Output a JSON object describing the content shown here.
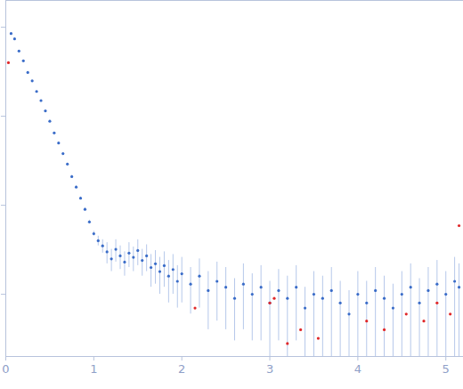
{
  "chart_data": {
    "type": "scatter",
    "log": "y",
    "grid": false,
    "tick_labels": "x",
    "xlim": [
      0,
      5.2
    ],
    "xticks": [
      0,
      1,
      2,
      3,
      4,
      5
    ],
    "ylim": [
      0.002,
      20
    ],
    "yticks": [
      0.01,
      0.1,
      1,
      10
    ],
    "series": [
      {
        "color": "#3a6cc8",
        "marker": "circle",
        "x": [
          0.06,
          0.1,
          0.15,
          0.2,
          0.25,
          0.3,
          0.35,
          0.4,
          0.45,
          0.5,
          0.55,
          0.6,
          0.65,
          0.7,
          0.75,
          0.8,
          0.85,
          0.9,
          0.95,
          1.0,
          1.05,
          1.1,
          1.15,
          1.2,
          1.25,
          1.3,
          1.35,
          1.4,
          1.45,
          1.5,
          1.55,
          1.6,
          1.65,
          1.7,
          1.75,
          1.8,
          1.85,
          1.9,
          1.95,
          2.0,
          2.1,
          2.2,
          2.3,
          2.4,
          2.5,
          2.6,
          2.7,
          2.8,
          2.9,
          3.0,
          3.1,
          3.2,
          3.3,
          3.4,
          3.5,
          3.6,
          3.7,
          3.8,
          3.9,
          4.0,
          4.1,
          4.2,
          4.3,
          4.4,
          4.5,
          4.6,
          4.7,
          4.8,
          4.9,
          5.0,
          5.1,
          5.15
        ],
        "values": [
          8.5,
          7.4,
          5.4,
          4.2,
          3.1,
          2.5,
          1.9,
          1.5,
          1.15,
          0.88,
          0.65,
          0.5,
          0.38,
          0.29,
          0.21,
          0.16,
          0.12,
          0.09,
          0.065,
          0.048,
          0.04,
          0.035,
          0.03,
          0.025,
          0.032,
          0.027,
          0.023,
          0.029,
          0.026,
          0.031,
          0.024,
          0.027,
          0.02,
          0.022,
          0.018,
          0.021,
          0.016,
          0.019,
          0.014,
          0.017,
          0.013,
          0.016,
          0.011,
          0.014,
          0.012,
          0.009,
          0.013,
          0.01,
          0.012,
          0.008,
          0.011,
          0.009,
          0.012,
          0.007,
          0.01,
          0.009,
          0.011,
          0.008,
          0.006,
          0.01,
          0.008,
          0.011,
          0.009,
          0.007,
          0.01,
          0.012,
          0.008,
          0.011,
          0.013,
          0.01,
          0.014,
          0.012
        ],
        "errors": [
          0.2,
          0.15,
          0.1,
          0.08,
          0.06,
          0.05,
          0.04,
          0.03,
          0.025,
          0.02,
          0.015,
          0.012,
          0.01,
          0.008,
          0.006,
          0.005,
          0.004,
          0.004,
          0.003,
          0.003,
          0.005,
          0.006,
          0.008,
          0.007,
          0.009,
          0.008,
          0.007,
          0.009,
          0.008,
          0.01,
          0.008,
          0.009,
          0.008,
          0.009,
          0.008,
          0.009,
          0.008,
          0.009,
          0.007,
          0.009,
          0.007,
          0.009,
          0.007,
          0.009,
          0.008,
          0.006,
          0.009,
          0.007,
          0.009,
          0.006,
          0.008,
          0.007,
          0.009,
          0.005,
          0.008,
          0.007,
          0.009,
          0.006,
          0.005,
          0.008,
          0.006,
          0.009,
          0.007,
          0.006,
          0.008,
          0.01,
          0.007,
          0.009,
          0.011,
          0.008,
          0.012,
          0.01
        ]
      },
      {
        "color": "#e0282a",
        "marker": "circle",
        "x": [
          0.03,
          2.15,
          3.0,
          3.05,
          3.2,
          3.35,
          3.55,
          4.1,
          4.3,
          4.55,
          4.75,
          4.9,
          5.05,
          5.15
        ],
        "values": [
          4.0,
          0.007,
          0.008,
          0.009,
          0.0028,
          0.004,
          0.0032,
          0.005,
          0.004,
          0.006,
          0.005,
          0.008,
          0.006,
          0.059
        ]
      }
    ]
  }
}
